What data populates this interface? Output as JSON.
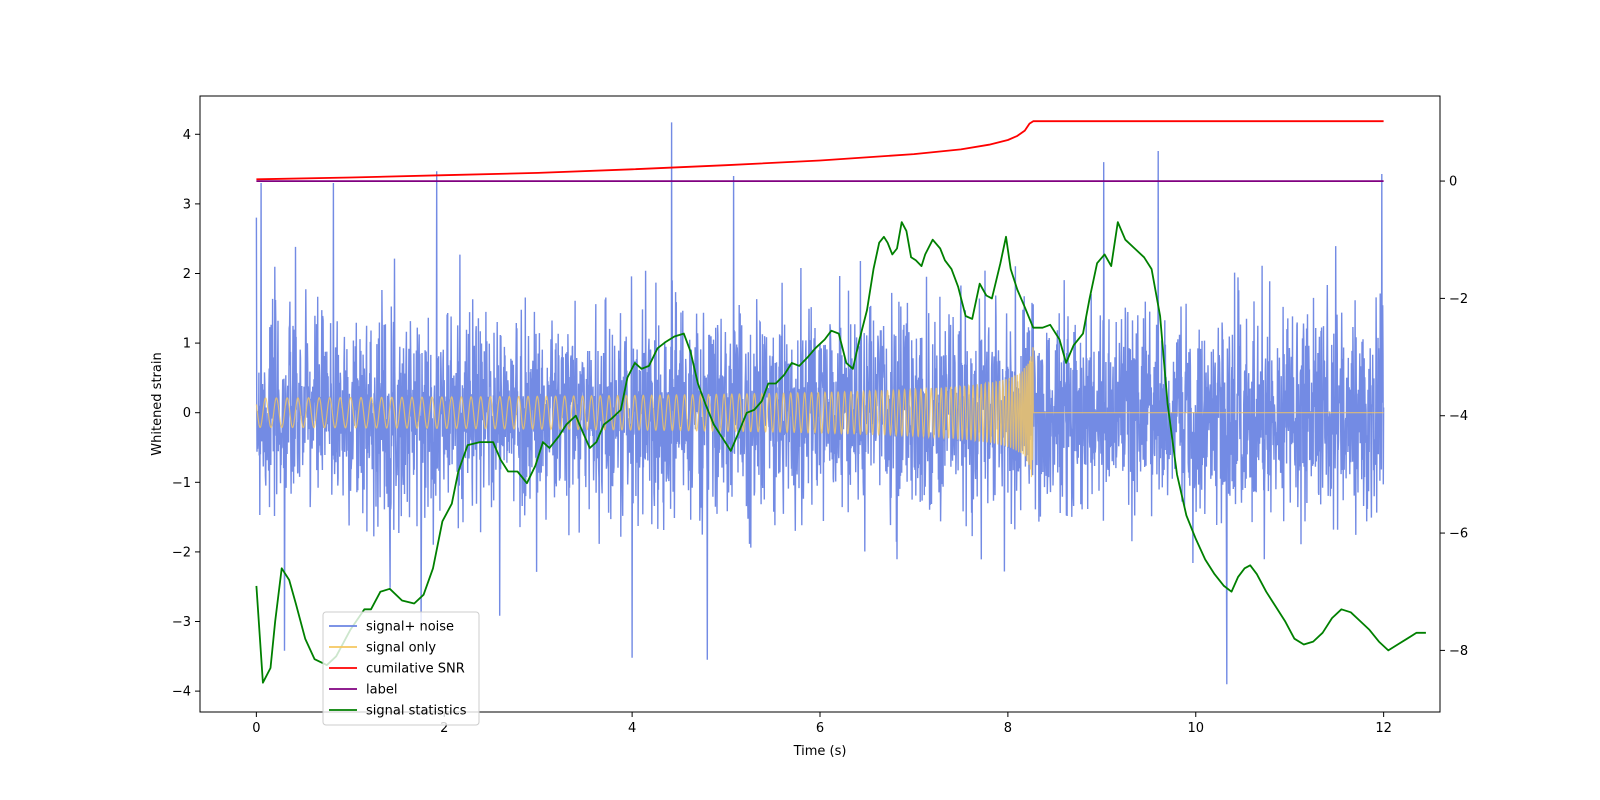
{
  "chart_data": {
    "type": "line",
    "title": "",
    "xlabel": "Time (s)",
    "ylabel": "Whitened strain",
    "ylabel_right": "",
    "xlim": [
      -0.6,
      12.6
    ],
    "ylim": [
      -4.3,
      4.55
    ],
    "ylim_right": [
      -9.05,
      1.45
    ],
    "x_ticks": [
      0,
      2,
      4,
      6,
      8,
      10,
      12
    ],
    "y_ticks": [
      -4,
      -3,
      -2,
      -1,
      0,
      1,
      2,
      3,
      4
    ],
    "y_ticks_right": [
      -8,
      -6,
      -4,
      -2,
      0
    ],
    "grid": false,
    "legend_position": "lower-left",
    "merger_time": 8.27,
    "series": [
      {
        "name": "signal+ noise",
        "axis": "left",
        "color": "#6b85e3",
        "description": "whitened noise plus signal",
        "x_range": [
          0,
          12
        ],
        "envelope": 1.55,
        "peaks": [
          [
            0.05,
            3.3
          ],
          [
            0.82,
            3.3
          ],
          [
            1.92,
            3.47
          ],
          [
            4.42,
            4.17
          ],
          [
            5.08,
            3.4
          ],
          [
            9.02,
            3.6
          ],
          [
            9.6,
            3.76
          ],
          [
            11.98,
            3.43
          ],
          [
            4.8,
            -3.55
          ],
          [
            0.3,
            -3.42
          ],
          [
            10.33,
            -3.9
          ],
          [
            4.0,
            -3.52
          ]
        ]
      },
      {
        "name": "signal only",
        "axis": "left",
        "color": "#f5c75f",
        "description": "chirp ending at merger",
        "x_range": [
          0,
          12
        ],
        "amplitude_at_merger": 0.95
      },
      {
        "name": "cumilative SNR",
        "axis": "right",
        "color": "#ff0000",
        "points": [
          [
            0,
            0.03
          ],
          [
            1,
            0.06
          ],
          [
            2,
            0.1
          ],
          [
            3,
            0.14
          ],
          [
            4,
            0.2
          ],
          [
            5,
            0.27
          ],
          [
            6,
            0.35
          ],
          [
            7,
            0.46
          ],
          [
            7.5,
            0.54
          ],
          [
            7.8,
            0.62
          ],
          [
            8.0,
            0.7
          ],
          [
            8.1,
            0.77
          ],
          [
            8.18,
            0.86
          ],
          [
            8.23,
            0.98
          ],
          [
            8.27,
            1.02
          ],
          [
            12,
            1.02
          ]
        ]
      },
      {
        "name": "label",
        "axis": "right",
        "color": "#800080",
        "points": [
          [
            0,
            0
          ],
          [
            12,
            0
          ]
        ]
      },
      {
        "name": "signal statistics",
        "axis": "right",
        "color": "#008000",
        "points": [
          [
            0,
            -6.9
          ],
          [
            0.07,
            -8.55
          ],
          [
            0.15,
            -8.3
          ],
          [
            0.2,
            -7.5
          ],
          [
            0.27,
            -6.6
          ],
          [
            0.35,
            -6.8
          ],
          [
            0.42,
            -7.2
          ],
          [
            0.52,
            -7.8
          ],
          [
            0.62,
            -8.15
          ],
          [
            0.75,
            -8.25
          ],
          [
            0.85,
            -8.1
          ],
          [
            1.0,
            -7.65
          ],
          [
            1.15,
            -7.3
          ],
          [
            1.22,
            -7.3
          ],
          [
            1.32,
            -7.0
          ],
          [
            1.42,
            -6.95
          ],
          [
            1.55,
            -7.15
          ],
          [
            1.68,
            -7.2
          ],
          [
            1.78,
            -7.05
          ],
          [
            1.88,
            -6.6
          ],
          [
            1.98,
            -5.8
          ],
          [
            2.08,
            -5.5
          ],
          [
            2.15,
            -4.95
          ],
          [
            2.25,
            -4.5
          ],
          [
            2.38,
            -4.45
          ],
          [
            2.45,
            -4.45
          ],
          [
            2.52,
            -4.45
          ],
          [
            2.6,
            -4.75
          ],
          [
            2.68,
            -4.95
          ],
          [
            2.78,
            -4.95
          ],
          [
            2.88,
            -5.15
          ],
          [
            2.97,
            -4.85
          ],
          [
            3.05,
            -4.45
          ],
          [
            3.12,
            -4.55
          ],
          [
            3.22,
            -4.35
          ],
          [
            3.3,
            -4.15
          ],
          [
            3.4,
            -4.0
          ],
          [
            3.48,
            -4.3
          ],
          [
            3.55,
            -4.55
          ],
          [
            3.62,
            -4.45
          ],
          [
            3.7,
            -4.15
          ],
          [
            3.78,
            -4.05
          ],
          [
            3.88,
            -3.9
          ],
          [
            3.95,
            -3.35
          ],
          [
            4.03,
            -3.1
          ],
          [
            4.1,
            -3.2
          ],
          [
            4.18,
            -3.15
          ],
          [
            4.27,
            -2.85
          ],
          [
            4.35,
            -2.75
          ],
          [
            4.45,
            -2.65
          ],
          [
            4.55,
            -2.6
          ],
          [
            4.62,
            -2.9
          ],
          [
            4.7,
            -3.45
          ],
          [
            4.78,
            -3.8
          ],
          [
            4.87,
            -4.15
          ],
          [
            4.95,
            -4.35
          ],
          [
            5.05,
            -4.6
          ],
          [
            5.13,
            -4.3
          ],
          [
            5.22,
            -3.95
          ],
          [
            5.3,
            -3.9
          ],
          [
            5.38,
            -3.75
          ],
          [
            5.45,
            -3.45
          ],
          [
            5.53,
            -3.45
          ],
          [
            5.62,
            -3.3
          ],
          [
            5.7,
            -3.1
          ],
          [
            5.78,
            -3.15
          ],
          [
            5.87,
            -3.0
          ],
          [
            5.95,
            -2.85
          ],
          [
            6.05,
            -2.7
          ],
          [
            6.12,
            -2.55
          ],
          [
            6.2,
            -2.6
          ],
          [
            6.28,
            -3.1
          ],
          [
            6.35,
            -3.2
          ],
          [
            6.42,
            -2.7
          ],
          [
            6.5,
            -2.2
          ],
          [
            6.57,
            -1.5
          ],
          [
            6.63,
            -1.05
          ],
          [
            6.68,
            -0.95
          ],
          [
            6.72,
            -1.05
          ],
          [
            6.77,
            -1.25
          ],
          [
            6.82,
            -1.15
          ],
          [
            6.87,
            -0.7
          ],
          [
            6.92,
            -0.85
          ],
          [
            6.97,
            -1.3
          ],
          [
            7.02,
            -1.35
          ],
          [
            7.08,
            -1.45
          ],
          [
            7.12,
            -1.25
          ],
          [
            7.2,
            -1.0
          ],
          [
            7.28,
            -1.15
          ],
          [
            7.33,
            -1.35
          ],
          [
            7.4,
            -1.5
          ],
          [
            7.47,
            -1.8
          ],
          [
            7.55,
            -2.3
          ],
          [
            7.62,
            -2.35
          ],
          [
            7.7,
            -1.75
          ],
          [
            7.77,
            -1.95
          ],
          [
            7.83,
            -2.0
          ],
          [
            7.92,
            -1.4
          ],
          [
            7.98,
            -0.95
          ],
          [
            8.03,
            -1.5
          ],
          [
            8.1,
            -1.85
          ],
          [
            8.18,
            -2.15
          ],
          [
            8.27,
            -2.5
          ],
          [
            8.37,
            -2.5
          ],
          [
            8.45,
            -2.45
          ],
          [
            8.55,
            -2.7
          ],
          [
            8.62,
            -3.1
          ],
          [
            8.7,
            -2.8
          ],
          [
            8.8,
            -2.6
          ],
          [
            8.87,
            -2.0
          ],
          [
            8.95,
            -1.4
          ],
          [
            9.03,
            -1.25
          ],
          [
            9.1,
            -1.45
          ],
          [
            9.17,
            -0.7
          ],
          [
            9.25,
            -1.0
          ],
          [
            9.35,
            -1.15
          ],
          [
            9.45,
            -1.3
          ],
          [
            9.53,
            -1.5
          ],
          [
            9.62,
            -2.3
          ],
          [
            9.7,
            -3.8
          ],
          [
            9.8,
            -5.0
          ],
          [
            9.9,
            -5.7
          ],
          [
            10.0,
            -6.1
          ],
          [
            10.1,
            -6.45
          ],
          [
            10.2,
            -6.7
          ],
          [
            10.3,
            -6.9
          ],
          [
            10.38,
            -7.0
          ],
          [
            10.45,
            -6.75
          ],
          [
            10.52,
            -6.6
          ],
          [
            10.58,
            -6.55
          ],
          [
            10.65,
            -6.7
          ],
          [
            10.75,
            -7.0
          ],
          [
            10.85,
            -7.25
          ],
          [
            10.95,
            -7.5
          ],
          [
            11.05,
            -7.8
          ],
          [
            11.15,
            -7.9
          ],
          [
            11.25,
            -7.85
          ],
          [
            11.35,
            -7.7
          ],
          [
            11.45,
            -7.45
          ],
          [
            11.55,
            -7.3
          ],
          [
            11.65,
            -7.35
          ],
          [
            11.75,
            -7.5
          ],
          [
            11.85,
            -7.65
          ],
          [
            11.95,
            -7.85
          ],
          [
            12.05,
            -8.0
          ],
          [
            12.15,
            -7.9
          ],
          [
            12.25,
            -7.8
          ],
          [
            12.35,
            -7.7
          ],
          [
            12.45,
            -7.7
          ]
        ]
      }
    ]
  }
}
